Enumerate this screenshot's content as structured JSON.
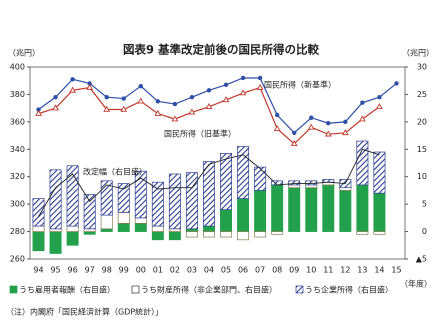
{
  "chart_data": {
    "type": "combo",
    "title": "図表9 基準改定前後の国民所得の比較",
    "y_label": "（兆円）",
    "y2_label": "（兆円）",
    "x_label": "（年度）",
    "note": "（注）内閣府「国民経済計算（GDP統計）」",
    "categories": [
      "94",
      "95",
      "96",
      "97",
      "98",
      "99",
      "00",
      "01",
      "02",
      "03",
      "04",
      "05",
      "06",
      "07",
      "08",
      "09",
      "10",
      "11",
      "12",
      "13",
      "14",
      "15"
    ],
    "ylim": [
      260,
      400
    ],
    "yticks": [
      260,
      280,
      300,
      320,
      340,
      360,
      380,
      400
    ],
    "y2lim": [
      -5,
      30
    ],
    "y2ticks": [
      {
        "value": -5,
        "label": "▲5"
      },
      0,
      5,
      10,
      15,
      20,
      25,
      30
    ],
    "series": [
      {
        "name": "うち雇用者報酬（右目盛）",
        "type": "bar",
        "axis": "y2",
        "color": "#22a04b",
        "values": [
          -3.5,
          -4,
          -2.5,
          -0.5,
          0.5,
          1.5,
          1.5,
          -1.5,
          -1.5,
          0.5,
          1,
          4,
          6,
          7.5,
          8.5,
          8,
          8,
          8.5,
          7.5,
          8.5,
          7,
          null
        ]
      },
      {
        "name": "うち財産所得（非企業部門、右目盛）",
        "type": "bar",
        "axis": "y2",
        "color": "#ffffff",
        "values": [
          1,
          0.5,
          1,
          0.5,
          2.5,
          2,
          1,
          1,
          0.5,
          -1,
          -1,
          -1,
          -1.5,
          -1,
          -0.5,
          0.5,
          0.5,
          0.5,
          0.5,
          -0.5,
          -0.5,
          null
        ]
      },
      {
        "name": "うち企業所得（右目盛）",
        "type": "bar",
        "axis": "y2",
        "color": "#2b3f8f",
        "pattern": "hatch",
        "values": [
          5,
          10.75,
          11,
          6.25,
          6.25,
          5.25,
          8.5,
          8,
          10,
          10.25,
          11.75,
          10.25,
          9.5,
          4.25,
          0.75,
          0.75,
          0.75,
          0.5,
          1.5,
          8,
          7.5,
          null
        ]
      },
      {
        "name": "改定幅（右目盛）",
        "type": "line",
        "axis": "y2",
        "color": "#222222",
        "values": [
          2.75,
          8,
          10.5,
          5.5,
          8.5,
          7.75,
          9.75,
          7.75,
          8,
          8,
          12.25,
          13.25,
          14,
          11.5,
          8.5,
          8.75,
          8.75,
          9,
          8.75,
          15,
          14,
          null
        ]
      },
      {
        "name": "国民所得（新基準）",
        "type": "line",
        "axis": "y",
        "color": "#2e4fa6",
        "marker": "circle",
        "values": [
          369,
          378,
          391,
          388,
          378,
          377,
          386,
          375,
          373,
          378,
          383,
          387,
          392,
          392,
          365,
          352,
          363,
          359,
          360,
          374,
          378,
          388
        ]
      },
      {
        "name": "国民所得（旧基準）",
        "type": "line",
        "axis": "y",
        "color": "#c0392b",
        "marker": "triangle",
        "values": [
          366,
          370,
          383,
          385,
          369,
          369,
          375,
          366,
          362,
          367,
          371,
          376,
          381,
          385,
          355,
          344,
          356,
          351,
          352,
          362,
          371,
          null
        ]
      }
    ]
  }
}
